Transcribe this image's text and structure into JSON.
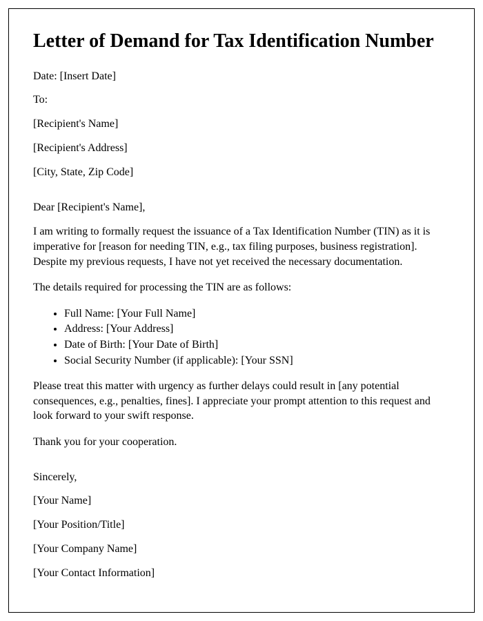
{
  "title": "Letter of Demand for Tax Identification Number",
  "dateLine": "Date: [Insert Date]",
  "toLabel": "To:",
  "recipientName": "[Recipient's Name]",
  "recipientAddress": "[Recipient's Address]",
  "recipientCityStateZip": "[City, State, Zip Code]",
  "salutation": "Dear [Recipient's Name],",
  "paragraph1": "I am writing to formally request the issuance of a Tax Identification Number (TIN) as it is imperative for [reason for needing TIN, e.g., tax filing purposes, business registration]. Despite my previous requests, I have not yet received the necessary documentation.",
  "paragraph2": "The details required for processing the TIN are as follows:",
  "details": [
    "Full Name: [Your Full Name]",
    "Address: [Your Address]",
    "Date of Birth: [Your Date of Birth]",
    "Social Security Number (if applicable): [Your SSN]"
  ],
  "paragraph3": "Please treat this matter with urgency as further delays could result in [any potential consequences, e.g., penalties, fines]. I appreciate your prompt attention to this request and look forward to your swift response.",
  "paragraph4": "Thank you for your cooperation.",
  "closing": "Sincerely,",
  "senderName": "[Your Name]",
  "senderPosition": "[Your Position/Title]",
  "senderCompany": "[Your Company Name]",
  "senderContact": "[Your Contact Information]"
}
